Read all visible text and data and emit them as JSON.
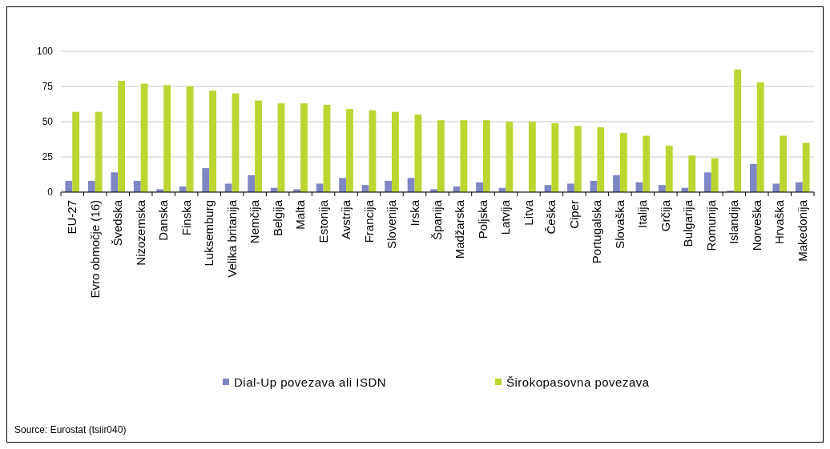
{
  "chart_data": {
    "type": "bar",
    "categories": [
      "EU-27",
      "Evro območje (16)",
      "Švedska",
      "Nizozemska",
      "Danska",
      "Finska",
      "Luksemburg",
      "Velika britanija",
      "Nemčija",
      "Belgija",
      "Malta",
      "Estonija",
      "Avstrija",
      "Francija",
      "Slovenija",
      "Irska",
      "Španija",
      "Madžarska",
      "Poljska",
      "Latvija",
      "Litva",
      "Češka",
      "Ciper",
      "Portugalska",
      "Slovaška",
      "Italija",
      "Grčija",
      "Bulgarija",
      "Romunija",
      "Islandija",
      "Norveška",
      "Hrvaška",
      "Makedonija"
    ],
    "series": [
      {
        "name": "Dial-Up povezava ali ISDN",
        "color": "#7f86c4",
        "values": [
          8,
          8,
          14,
          8,
          2,
          4,
          17,
          6,
          12,
          3,
          2,
          6,
          10,
          5,
          8,
          10,
          2,
          4,
          7,
          3,
          0,
          5,
          6,
          8,
          12,
          7,
          5,
          3,
          14,
          1,
          20,
          6,
          7
        ]
      },
      {
        "name": "Širokopasovna povezava",
        "color": "#bcd531",
        "values": [
          57,
          57,
          79,
          77,
          76,
          75,
          72,
          70,
          65,
          63,
          63,
          62,
          59,
          58,
          57,
          55,
          51,
          51,
          51,
          50,
          50,
          49,
          47,
          46,
          42,
          40,
          33,
          26,
          24,
          87,
          78,
          40,
          35
        ]
      }
    ],
    "ylim": [
      0,
      100
    ],
    "yticks": [
      0,
      25,
      50,
      75,
      100
    ],
    "grid": "y",
    "legend": "bottom",
    "annotations": [
      "Source: Eurostat (tsiir040)"
    ]
  }
}
